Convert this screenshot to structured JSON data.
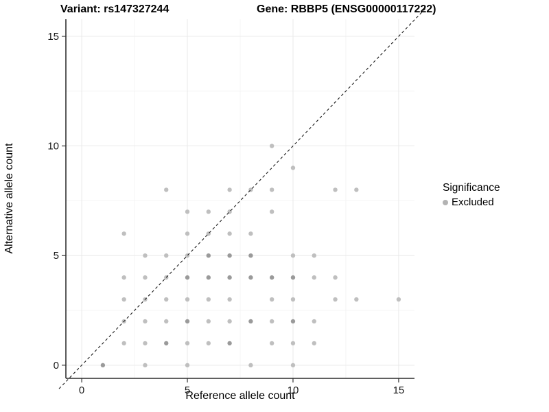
{
  "chart_data": {
    "type": "scatter",
    "titles": {
      "left": "Variant: rs147327244",
      "right": "Gene: RBBP5 (ENSG00000117222)"
    },
    "xlabel": "Reference allele count",
    "ylabel": "Alternative allele count",
    "xlim": [
      -0.75,
      15.75
    ],
    "ylim": [
      -0.6,
      15.78
    ],
    "x_ticks": [
      0,
      5,
      10,
      15
    ],
    "y_ticks": [
      0,
      5,
      10,
      15
    ],
    "x_minor": [
      2.5,
      7.5,
      12.5
    ],
    "y_minor": [
      2.5,
      7.5,
      12.5
    ],
    "grid": true,
    "legend": {
      "title": "Significance",
      "position": "right",
      "items": [
        {
          "label": "Excluded",
          "color": "#b3b3b3"
        }
      ]
    },
    "identity_line": {
      "style": "dashed",
      "slope": 1,
      "intercept": 0,
      "color": "#1a1a1a"
    },
    "point_colors": {
      "light": "#bfbfbf",
      "dark": "#9a9a9a"
    },
    "points": [
      {
        "x": 1,
        "y": 0,
        "shade": "dark"
      },
      {
        "x": 3,
        "y": 0,
        "shade": "light"
      },
      {
        "x": 5,
        "y": 0,
        "shade": "light"
      },
      {
        "x": 8,
        "y": 0,
        "shade": "light"
      },
      {
        "x": 10,
        "y": 0,
        "shade": "light"
      },
      {
        "x": 2,
        "y": 1,
        "shade": "light"
      },
      {
        "x": 3,
        "y": 1,
        "shade": "light"
      },
      {
        "x": 4,
        "y": 1,
        "shade": "dark"
      },
      {
        "x": 5,
        "y": 1,
        "shade": "light"
      },
      {
        "x": 6,
        "y": 1,
        "shade": "light"
      },
      {
        "x": 7,
        "y": 1,
        "shade": "dark"
      },
      {
        "x": 9,
        "y": 1,
        "shade": "light"
      },
      {
        "x": 10,
        "y": 1,
        "shade": "light"
      },
      {
        "x": 11,
        "y": 1,
        "shade": "light"
      },
      {
        "x": 2,
        "y": 2,
        "shade": "light"
      },
      {
        "x": 3,
        "y": 2,
        "shade": "light"
      },
      {
        "x": 4,
        "y": 2,
        "shade": "light"
      },
      {
        "x": 5,
        "y": 2,
        "shade": "dark"
      },
      {
        "x": 6,
        "y": 2,
        "shade": "light"
      },
      {
        "x": 7,
        "y": 2,
        "shade": "light"
      },
      {
        "x": 8,
        "y": 2,
        "shade": "dark"
      },
      {
        "x": 9,
        "y": 2,
        "shade": "light"
      },
      {
        "x": 10,
        "y": 2,
        "shade": "dark"
      },
      {
        "x": 11,
        "y": 2,
        "shade": "light"
      },
      {
        "x": 2,
        "y": 3,
        "shade": "light"
      },
      {
        "x": 3,
        "y": 3,
        "shade": "light"
      },
      {
        "x": 4,
        "y": 3,
        "shade": "light"
      },
      {
        "x": 5,
        "y": 3,
        "shade": "light"
      },
      {
        "x": 6,
        "y": 3,
        "shade": "light"
      },
      {
        "x": 7,
        "y": 3,
        "shade": "light"
      },
      {
        "x": 9,
        "y": 3,
        "shade": "light"
      },
      {
        "x": 10,
        "y": 3,
        "shade": "light"
      },
      {
        "x": 12,
        "y": 3,
        "shade": "light"
      },
      {
        "x": 13,
        "y": 3,
        "shade": "light"
      },
      {
        "x": 15,
        "y": 3,
        "shade": "light"
      },
      {
        "x": 2,
        "y": 4,
        "shade": "light"
      },
      {
        "x": 3,
        "y": 4,
        "shade": "light"
      },
      {
        "x": 4,
        "y": 4,
        "shade": "light"
      },
      {
        "x": 5,
        "y": 4,
        "shade": "dark"
      },
      {
        "x": 6,
        "y": 4,
        "shade": "dark"
      },
      {
        "x": 7,
        "y": 4,
        "shade": "dark"
      },
      {
        "x": 8,
        "y": 4,
        "shade": "dark"
      },
      {
        "x": 9,
        "y": 4,
        "shade": "dark"
      },
      {
        "x": 10,
        "y": 4,
        "shade": "dark"
      },
      {
        "x": 11,
        "y": 4,
        "shade": "light"
      },
      {
        "x": 12,
        "y": 4,
        "shade": "light"
      },
      {
        "x": 3,
        "y": 5,
        "shade": "light"
      },
      {
        "x": 4,
        "y": 5,
        "shade": "light"
      },
      {
        "x": 5,
        "y": 5,
        "shade": "light"
      },
      {
        "x": 6,
        "y": 5,
        "shade": "dark"
      },
      {
        "x": 7,
        "y": 5,
        "shade": "dark"
      },
      {
        "x": 8,
        "y": 5,
        "shade": "dark"
      },
      {
        "x": 10,
        "y": 5,
        "shade": "light"
      },
      {
        "x": 11,
        "y": 5,
        "shade": "light"
      },
      {
        "x": 2,
        "y": 6,
        "shade": "light"
      },
      {
        "x": 5,
        "y": 6,
        "shade": "light"
      },
      {
        "x": 6,
        "y": 6,
        "shade": "light"
      },
      {
        "x": 7,
        "y": 6,
        "shade": "light"
      },
      {
        "x": 8,
        "y": 6,
        "shade": "light"
      },
      {
        "x": 5,
        "y": 7,
        "shade": "light"
      },
      {
        "x": 6,
        "y": 7,
        "shade": "light"
      },
      {
        "x": 7,
        "y": 7,
        "shade": "light"
      },
      {
        "x": 9,
        "y": 7,
        "shade": "light"
      },
      {
        "x": 4,
        "y": 8,
        "shade": "light"
      },
      {
        "x": 7,
        "y": 8,
        "shade": "light"
      },
      {
        "x": 8,
        "y": 8,
        "shade": "light"
      },
      {
        "x": 9,
        "y": 8,
        "shade": "light"
      },
      {
        "x": 12,
        "y": 8,
        "shade": "light"
      },
      {
        "x": 13,
        "y": 8,
        "shade": "light"
      },
      {
        "x": 10,
        "y": 9,
        "shade": "light"
      },
      {
        "x": 9,
        "y": 10,
        "shade": "light"
      }
    ]
  }
}
